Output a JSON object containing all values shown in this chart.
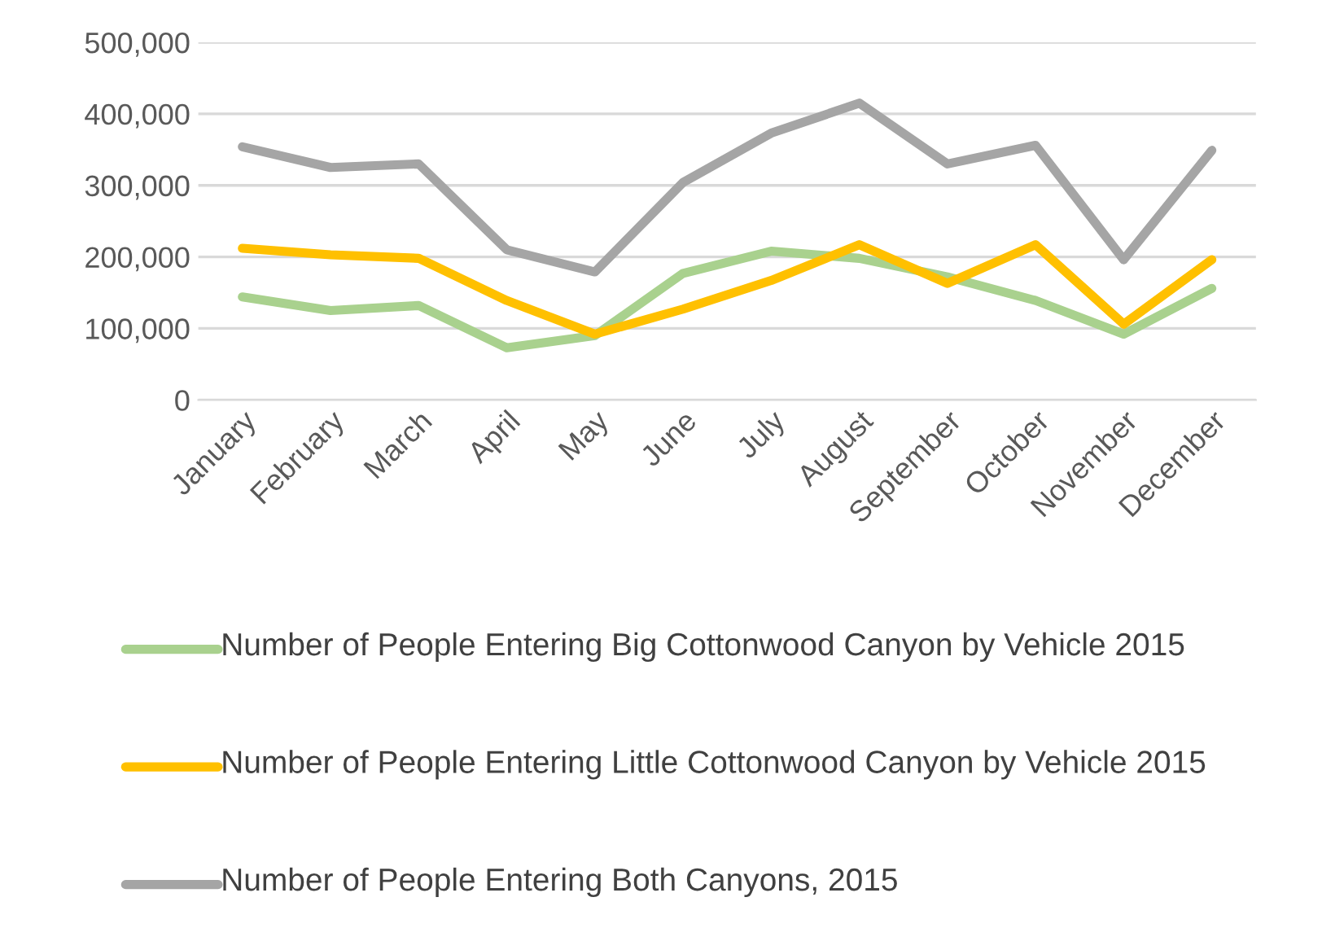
{
  "chart_data": {
    "type": "line",
    "categories": [
      "January",
      "February",
      "March",
      "April",
      "May",
      "June",
      "July",
      "August",
      "September",
      "October",
      "November",
      "December"
    ],
    "series": [
      {
        "name": "Number of People Entering Big Cottonwood Canyon by Vehicle 2015",
        "color": "#a9d18e",
        "values": [
          144000,
          125000,
          132000,
          73000,
          90000,
          177000,
          208000,
          198000,
          172000,
          139000,
          92000,
          156000
        ]
      },
      {
        "name": "Number of People Entering Little Cottonwood Canyon by Vehicle 2015",
        "color": "#ffc000",
        "values": [
          212000,
          203000,
          198000,
          139000,
          92000,
          127000,
          167000,
          217000,
          163000,
          217000,
          106000,
          196000
        ]
      },
      {
        "name": "Number of People Entering Both Canyons, 2015",
        "color": "#a5a5a5",
        "values": [
          354000,
          325000,
          330000,
          210000,
          179000,
          304000,
          373000,
          415000,
          330000,
          356000,
          196000,
          349000
        ]
      }
    ],
    "ylim": [
      0,
      500000
    ],
    "yticks": [
      {
        "value": 0,
        "label": "0"
      },
      {
        "value": 100000,
        "label": "100,000"
      },
      {
        "value": 200000,
        "label": "200,000"
      },
      {
        "value": 300000,
        "label": "300,000"
      },
      {
        "value": 400000,
        "label": "400,000"
      },
      {
        "value": 500000,
        "label": "500,000"
      }
    ],
    "grid": "y",
    "legend": "bottom",
    "marker": "none",
    "line_style": "solid"
  }
}
